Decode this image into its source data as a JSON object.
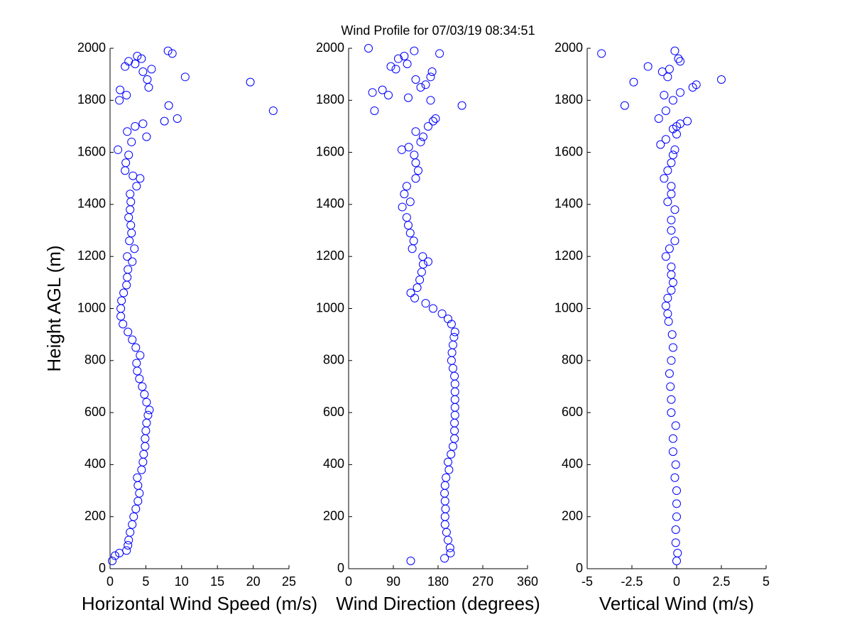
{
  "chart_data": [
    {
      "type": "scatter",
      "title": "Wind Profile for  07/03/19 08:34:51",
      "xlabel": "Horizontal Wind Speed (m/s)",
      "ylabel": "Height AGL (m)",
      "color": "#0000ff",
      "xlim": [
        0,
        25
      ],
      "xticks": [
        0,
        5,
        10,
        15,
        20,
        25
      ],
      "ylim": [
        0,
        2000
      ],
      "yticks": [
        0,
        200,
        400,
        600,
        800,
        1000,
        1200,
        1400,
        1600,
        1800,
        2000
      ],
      "x": [
        0.3,
        0.7,
        1.3,
        2.3,
        2.5,
        2.6,
        2.8,
        3.1,
        3.3,
        3.6,
        3.9,
        4.1,
        3.9,
        3.8,
        4.4,
        4.6,
        4.7,
        4.9,
        4.9,
        5.0,
        5.1,
        5.3,
        5.5,
        5.1,
        4.8,
        4.5,
        4.1,
        3.8,
        3.7,
        4.2,
        3.6,
        3.1,
        2.5,
        1.8,
        1.5,
        1.5,
        1.6,
        1.9,
        2.3,
        2.4,
        2.5,
        3.1,
        2.4,
        3.4,
        2.7,
        3.0,
        2.9,
        2.6,
        2.8,
        2.9,
        2.8,
        3.7,
        4.2,
        3.2,
        2.1,
        2.2,
        2.6,
        1.1,
        3.0,
        5.1,
        2.4,
        3.5,
        4.6,
        7.6,
        9.4,
        22.8,
        8.2,
        1.3,
        2.3,
        1.4,
        5.4,
        19.6,
        5.2,
        10.5,
        4.6,
        5.8,
        2.1,
        3.5,
        2.6,
        4.4,
        3.8,
        8.7,
        8.1
      ],
      "y": [
        30,
        50,
        60,
        70,
        90,
        110,
        140,
        170,
        200,
        230,
        260,
        290,
        320,
        350,
        380,
        410,
        440,
        470,
        500,
        530,
        560,
        590,
        610,
        640,
        670,
        700,
        730,
        760,
        790,
        820,
        850,
        880,
        910,
        940,
        970,
        1000,
        1030,
        1060,
        1090,
        1120,
        1150,
        1180,
        1200,
        1230,
        1260,
        1290,
        1320,
        1350,
        1380,
        1410,
        1440,
        1470,
        1500,
        1510,
        1530,
        1560,
        1590,
        1610,
        1640,
        1660,
        1680,
        1700,
        1710,
        1720,
        1730,
        1760,
        1780,
        1800,
        1820,
        1840,
        1850,
        1870,
        1880,
        1890,
        1910,
        1920,
        1930,
        1940,
        1950,
        1960,
        1970,
        1980,
        1990
      ]
    },
    {
      "type": "scatter",
      "xlabel": "Wind Direction (degrees)",
      "color": "#0000ff",
      "xlim": [
        0,
        360
      ],
      "xticks": [
        0,
        90,
        180,
        270,
        360
      ],
      "ylim": [
        0,
        2000
      ],
      "yticks": [
        0,
        200,
        400,
        600,
        800,
        1000,
        1200,
        1400,
        1600,
        1800,
        2000
      ],
      "x": [
        125,
        193,
        205,
        204,
        200,
        197,
        194,
        194,
        195,
        194,
        193,
        194,
        196,
        202,
        200,
        206,
        210,
        213,
        213,
        213,
        214,
        214,
        214,
        214,
        214,
        213,
        210,
        207,
        208,
        210,
        212,
        214,
        207,
        200,
        188,
        170,
        155,
        133,
        125,
        138,
        143,
        147,
        150,
        160,
        149,
        128,
        131,
        124,
        120,
        117,
        108,
        124,
        112,
        117,
        135,
        140,
        135,
        132,
        107,
        121,
        145,
        150,
        135,
        160,
        170,
        175,
        52,
        228,
        165,
        120,
        80,
        48,
        68,
        145,
        155,
        135,
        165,
        168,
        95,
        85,
        118,
        100,
        112,
        183,
        132,
        40
      ],
      "y": [
        30,
        40,
        60,
        80,
        110,
        140,
        170,
        200,
        230,
        260,
        290,
        320,
        350,
        380,
        410,
        440,
        470,
        500,
        530,
        560,
        590,
        620,
        650,
        680,
        710,
        740,
        770,
        800,
        830,
        860,
        890,
        910,
        940,
        960,
        980,
        1000,
        1020,
        1040,
        1060,
        1080,
        1110,
        1140,
        1170,
        1180,
        1200,
        1230,
        1260,
        1290,
        1320,
        1350,
        1390,
        1410,
        1440,
        1470,
        1500,
        1530,
        1560,
        1590,
        1610,
        1620,
        1640,
        1660,
        1680,
        1700,
        1720,
        1730,
        1760,
        1780,
        1800,
        1810,
        1820,
        1830,
        1840,
        1850,
        1860,
        1880,
        1890,
        1910,
        1920,
        1930,
        1940,
        1960,
        1970,
        1980,
        1990,
        2000
      ]
    },
    {
      "type": "scatter",
      "xlabel": "Vertical Wind (m/s)",
      "color": "#0000ff",
      "xlim": [
        -5,
        5
      ],
      "xticks": [
        -5,
        -2.5,
        0,
        2.5,
        5
      ],
      "ylim": [
        0,
        2000
      ],
      "yticks": [
        0,
        200,
        400,
        600,
        800,
        1000,
        1200,
        1400,
        1600,
        1800,
        2000
      ],
      "x": [
        0.0,
        0.05,
        -0.05,
        -0.05,
        0.0,
        0.0,
        0.0,
        -0.1,
        -0.05,
        -0.2,
        -0.2,
        -0.05,
        -0.3,
        -0.3,
        -0.35,
        -0.4,
        -0.3,
        -0.2,
        -0.25,
        -0.45,
        -0.5,
        -0.6,
        -0.5,
        -0.3,
        -0.2,
        -0.3,
        -0.3,
        -0.6,
        -0.4,
        -0.1,
        -0.3,
        -0.3,
        -0.1,
        -0.5,
        -0.3,
        -0.3,
        -0.7,
        -0.5,
        -0.3,
        -0.2,
        -0.1,
        -0.9,
        -0.6,
        0.0,
        -0.2,
        0.0,
        0.2,
        0.6,
        -1.0,
        -0.6,
        -2.9,
        -0.2,
        -0.7,
        0.2,
        0.9,
        1.1,
        -2.4,
        2.5,
        -0.5,
        -0.8,
        -0.4,
        -1.6,
        0.2,
        0.1,
        -4.2,
        -0.1
      ],
      "y": [
        30,
        60,
        100,
        150,
        200,
        250,
        300,
        350,
        400,
        450,
        500,
        550,
        600,
        650,
        700,
        750,
        800,
        850,
        900,
        950,
        980,
        1010,
        1040,
        1070,
        1100,
        1130,
        1160,
        1200,
        1230,
        1260,
        1300,
        1340,
        1380,
        1410,
        1440,
        1470,
        1500,
        1530,
        1560,
        1590,
        1610,
        1630,
        1650,
        1670,
        1690,
        1700,
        1710,
        1720,
        1730,
        1760,
        1780,
        1800,
        1820,
        1830,
        1850,
        1860,
        1870,
        1880,
        1890,
        1910,
        1920,
        1930,
        1950,
        1960,
        1980,
        1990
      ]
    }
  ]
}
